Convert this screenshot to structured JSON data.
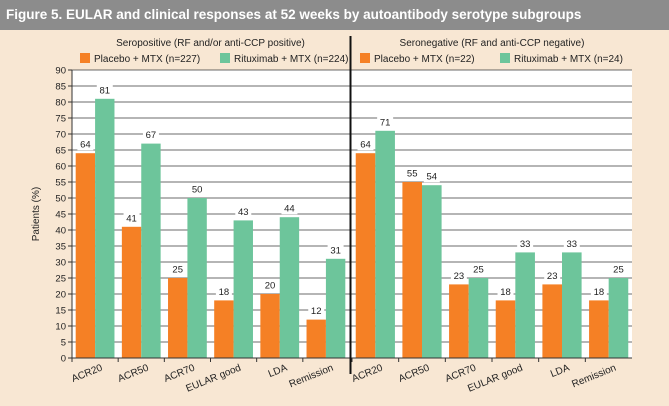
{
  "figure": {
    "title": "Figure 5. EULAR and clinical responses at 52 weeks by autoantibody serotype subgroups"
  },
  "chart_data": [
    {
      "type": "bar",
      "title": "Seropositive (RF and/or anti-CCP positive)",
      "categories": [
        "ACR20",
        "ACR50",
        "ACR70",
        "EULAR good",
        "LDA",
        "Remission"
      ],
      "series": [
        {
          "name": "Placebo + MTX (n=227)",
          "values": [
            64,
            41,
            25,
            18,
            20,
            12
          ],
          "labels": [
            "64",
            "41",
            "25",
            "18",
            "20",
            "12"
          ],
          "color": "#f58025"
        },
        {
          "name": "Rituximab + MTX (n=224)",
          "values": [
            81,
            67,
            50,
            43,
            44,
            31
          ],
          "labels": [
            "81",
            "67",
            "50",
            "43",
            "44",
            "31"
          ],
          "color": "#6dc59b"
        }
      ],
      "ylabel": "Patients (%)",
      "ylim": [
        0,
        90
      ],
      "yticks": [
        0,
        5,
        10,
        15,
        20,
        25,
        30,
        35,
        40,
        45,
        50,
        55,
        60,
        65,
        70,
        75,
        80,
        85,
        90
      ],
      "ytick_labels": [
        "0",
        "5",
        "10",
        "15",
        "20",
        "25",
        "30",
        "35",
        "40",
        "45",
        "50",
        "55",
        "60",
        "65",
        "70",
        "75",
        "80",
        "85",
        "90"
      ],
      "grid": true,
      "legend": "top"
    },
    {
      "type": "bar",
      "title": "Seronegative (RF and anti-CCP negative)",
      "categories": [
        "ACR20",
        "ACR50",
        "ACR70",
        "EULAR good",
        "LDA",
        "Remission"
      ],
      "series": [
        {
          "name": "Placebo + MTX (n=22)",
          "values": [
            64,
            55,
            23,
            18,
            23,
            18
          ],
          "labels": [
            "64",
            "55",
            "23",
            "18",
            "23",
            "18"
          ],
          "color": "#f58025"
        },
        {
          "name": "Rituximab + MTX (n=24)",
          "values": [
            71,
            54,
            25,
            33,
            33,
            25
          ],
          "labels": [
            "71",
            "54",
            "25",
            "33",
            "33",
            "25"
          ],
          "color": "#6dc59b"
        }
      ],
      "ylim": [
        0,
        90
      ],
      "grid": true,
      "legend": "top"
    }
  ]
}
